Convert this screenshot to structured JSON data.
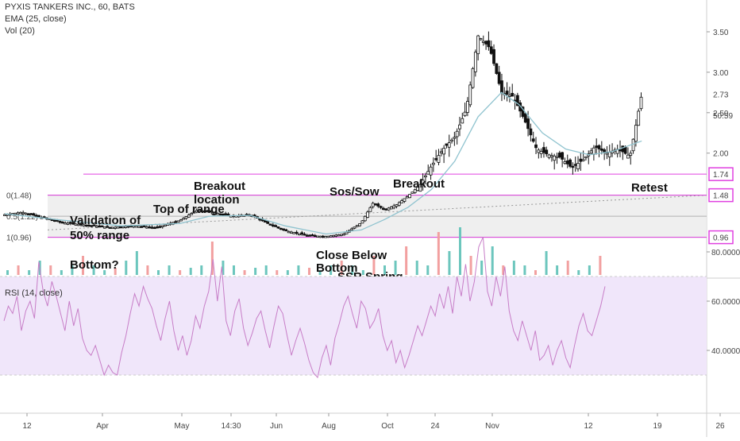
{
  "header": {
    "symbol_line": "PYXIS TANKERS INC., 60, BATS",
    "ema_label": "EMA (25, close)",
    "vol_label": "Vol (20)",
    "rsi_label": "RSI (14, close)"
  },
  "colors": {
    "up": "#ffffff",
    "down": "#111111",
    "ema": "#8fc3cf",
    "level": "#e040e0",
    "rsi_line": "#c77dc7",
    "rsi_band": "#f0e6fa",
    "range_fill": "#ececec",
    "vol_up": "#6cc6bd",
    "vol_down": "#f2a0a0",
    "fib_line": "#b0b0b0"
  },
  "chart_data": [
    {
      "type": "candlestick",
      "title": "PYXIS TANKERS INC., 60, BATS",
      "x_tick_labels": [
        "12",
        "Apr",
        "May",
        "14:30",
        "Jun",
        "Aug",
        "Oct",
        "24",
        "Nov",
        "12",
        "19",
        "26"
      ],
      "y_axis": {
        "ticks": [
          2.0,
          2.5,
          3.0,
          3.5
        ],
        "tick_labels": [
          "2.00",
          "2.50",
          "3.00",
          "3.50"
        ]
      },
      "price_badges": [
        "2.73",
        "50:59",
        "1.74",
        "1.48",
        "0.96"
      ],
      "levels": [
        {
          "name": "1.74",
          "value": 1.74
        },
        {
          "name": "1.48",
          "value": 1.48
        },
        {
          "name": "0.96",
          "value": 0.96
        }
      ],
      "fib_labels": [
        {
          "text": "0(1.48)",
          "value": 1.48
        },
        {
          "text": "0.5(1.22)",
          "value": 1.22
        },
        {
          "text": "1(0.96)",
          "value": 0.96
        }
      ],
      "annotations": [
        {
          "text": "Validation of",
          "t": 0.08
        },
        {
          "text": "50% range",
          "t": 0.08
        },
        {
          "text": "Bottom?",
          "t": 0.08
        },
        {
          "text": "Top of range",
          "t": 0.22
        },
        {
          "text": "Breakout",
          "t": 0.31
        },
        {
          "text": "location",
          "t": 0.31
        },
        {
          "text": "Sos/Sow",
          "t": 0.55
        },
        {
          "text": "Breakout",
          "t": 0.66
        },
        {
          "text": "Close Below",
          "t": 0.45
        },
        {
          "text": "Bottom",
          "t": 0.45
        },
        {
          "text": "SSR Spring",
          "t": 0.49
        },
        {
          "text": "Retest",
          "t": 0.96
        }
      ],
      "price_path": [
        [
          0.0,
          1.24
        ],
        [
          0.03,
          1.27
        ],
        [
          0.06,
          1.21
        ],
        [
          0.1,
          1.14
        ],
        [
          0.14,
          1.11
        ],
        [
          0.18,
          1.08
        ],
        [
          0.22,
          1.1
        ],
        [
          0.26,
          1.08
        ],
        [
          0.3,
          1.17
        ],
        [
          0.33,
          1.3
        ],
        [
          0.36,
          1.26
        ],
        [
          0.39,
          1.22
        ],
        [
          0.42,
          1.24
        ],
        [
          0.45,
          1.13
        ],
        [
          0.48,
          1.04
        ],
        [
          0.52,
          0.98
        ],
        [
          0.55,
          0.97
        ],
        [
          0.58,
          1.0
        ],
        [
          0.61,
          1.14
        ],
        [
          0.63,
          1.38
        ],
        [
          0.65,
          1.3
        ],
        [
          0.67,
          1.36
        ],
        [
          0.69,
          1.47
        ],
        [
          0.71,
          1.6
        ],
        [
          0.73,
          1.84
        ],
        [
          0.75,
          2.05
        ],
        [
          0.77,
          2.2
        ],
        [
          0.79,
          2.55
        ],
        [
          0.81,
          3.45
        ],
        [
          0.83,
          3.3
        ],
        [
          0.85,
          2.75
        ],
        [
          0.87,
          2.7
        ],
        [
          0.89,
          2.4
        ],
        [
          0.91,
          2.05
        ],
        [
          0.93,
          1.98
        ],
        [
          0.95,
          1.95
        ],
        [
          0.97,
          1.82
        ],
        [
          0.99,
          1.92
        ],
        [
          1.01,
          2.08
        ],
        [
          1.03,
          2.0
        ],
        [
          1.05,
          2.05
        ],
        [
          1.07,
          1.96
        ],
        [
          1.09,
          2.73
        ]
      ],
      "ema_path": [
        [
          0.0,
          1.25
        ],
        [
          0.1,
          1.17
        ],
        [
          0.2,
          1.1
        ],
        [
          0.3,
          1.13
        ],
        [
          0.35,
          1.22
        ],
        [
          0.42,
          1.23
        ],
        [
          0.48,
          1.1
        ],
        [
          0.55,
          1.0
        ],
        [
          0.61,
          1.05
        ],
        [
          0.65,
          1.18
        ],
        [
          0.69,
          1.33
        ],
        [
          0.73,
          1.55
        ],
        [
          0.77,
          1.9
        ],
        [
          0.81,
          2.45
        ],
        [
          0.85,
          2.75
        ],
        [
          0.88,
          2.6
        ],
        [
          0.92,
          2.25
        ],
        [
          0.96,
          2.05
        ],
        [
          1.0,
          1.98
        ],
        [
          1.04,
          2.02
        ],
        [
          1.09,
          2.15
        ]
      ]
    },
    {
      "type": "bar",
      "title": "Vol (20)",
      "values_relative": [
        0.1,
        0.2,
        0.1,
        0.3,
        0.2,
        0.1,
        0.2,
        0.4,
        0.2,
        0.1,
        0.15,
        0.3,
        0.5,
        0.2,
        0.1,
        0.2,
        0.1,
        0.15,
        0.2,
        0.7,
        0.3,
        0.2,
        0.1,
        0.15,
        0.2,
        0.1,
        0.1,
        0.2,
        0.15,
        0.1,
        0.2,
        0.3,
        0.2,
        0.1,
        0.4,
        0.2,
        0.3,
        0.6,
        0.3,
        0.2,
        0.9,
        0.5,
        1.0,
        0.4,
        0.3,
        0.6,
        0.2,
        0.3,
        0.2,
        0.1,
        0.5,
        0.2,
        0.3,
        0.1,
        0.2,
        0.4
      ]
    },
    {
      "type": "line",
      "title": "RSI (14, close)",
      "y_axis": {
        "ticks": [
          40,
          60,
          80
        ],
        "tick_labels": [
          "40.0000",
          "60.0000",
          "80.0000"
        ]
      },
      "band": [
        30,
        70
      ],
      "values": [
        52,
        58,
        55,
        62,
        48,
        56,
        60,
        53,
        76,
        64,
        58,
        68,
        62,
        55,
        48,
        60,
        50,
        57,
        45,
        40,
        38,
        42,
        36,
        30,
        34,
        31,
        30,
        39,
        46,
        55,
        63,
        58,
        66,
        61,
        57,
        50,
        44,
        53,
        60,
        48,
        40,
        46,
        38,
        44,
        54,
        49,
        58,
        64,
        77,
        60,
        74,
        52,
        46,
        56,
        61,
        49,
        42,
        47,
        53,
        56,
        48,
        41,
        50,
        58,
        55,
        46,
        38,
        44,
        49,
        43,
        36,
        31,
        29,
        37,
        42,
        34,
        45,
        51,
        58,
        62,
        55,
        49,
        60,
        57,
        49,
        52,
        57,
        46,
        40,
        44,
        35,
        40,
        33,
        38,
        44,
        50,
        46,
        52,
        58,
        54,
        63,
        57,
        66,
        55,
        70,
        62,
        75,
        60,
        68,
        82,
        86,
        64,
        58,
        70,
        62,
        74,
        56,
        48,
        44,
        52,
        46,
        40,
        48,
        36,
        38,
        42,
        34,
        40,
        44,
        37,
        33,
        42,
        50,
        55,
        48,
        46,
        52,
        58,
        66
      ]
    }
  ]
}
